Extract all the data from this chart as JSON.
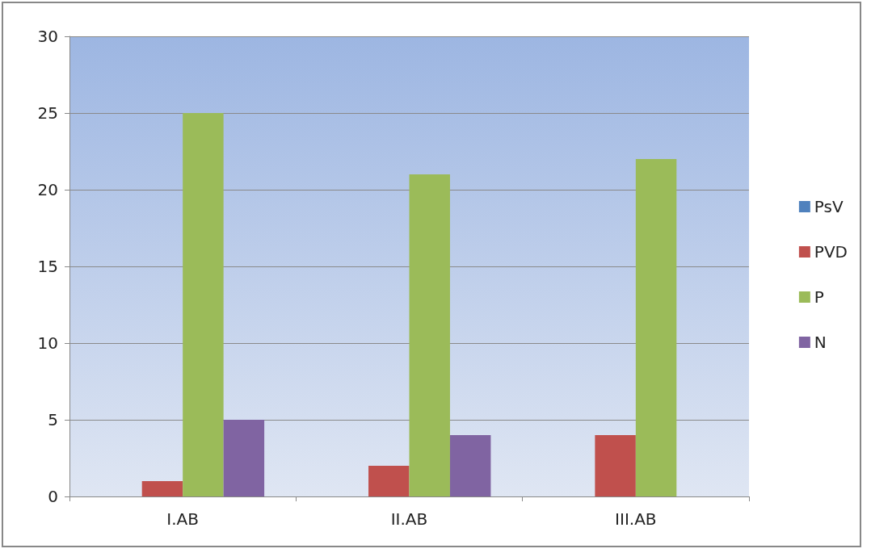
{
  "chart_data": {
    "type": "bar",
    "categories": [
      "I.AB",
      "II.AB",
      "III.AB"
    ],
    "series": [
      {
        "name": "PsV",
        "color": "#4f81bd",
        "values": [
          0,
          0,
          0
        ]
      },
      {
        "name": "PVD",
        "color": "#c0504d",
        "values": [
          1,
          2,
          4
        ]
      },
      {
        "name": "P",
        "color": "#9bbb59",
        "values": [
          25,
          21,
          22
        ]
      },
      {
        "name": "N",
        "color": "#8064a2",
        "values": [
          5,
          4,
          0
        ]
      }
    ],
    "ylim": [
      0,
      30
    ],
    "yticks": [
      0,
      5,
      10,
      15,
      20,
      25,
      30
    ],
    "grid": "y",
    "legend": "right"
  }
}
